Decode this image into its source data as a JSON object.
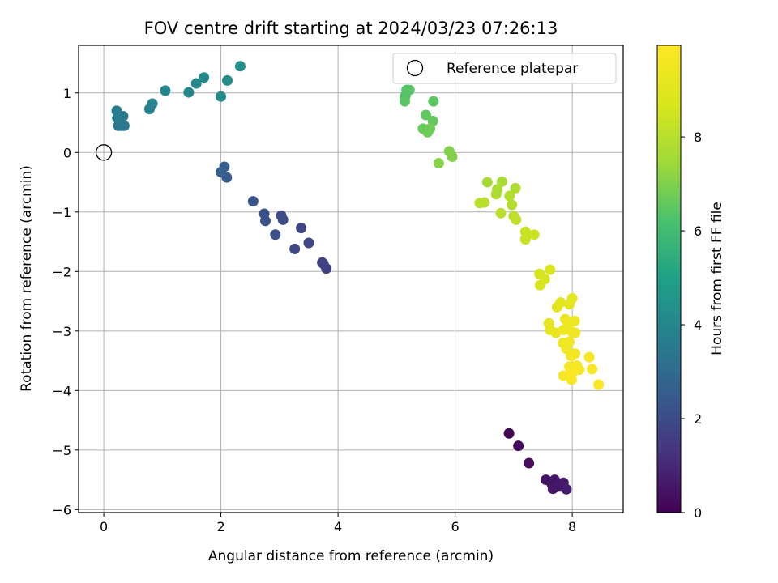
{
  "chart_data": {
    "type": "scatter",
    "title": "FOV centre drift starting at 2024/03/23 07:26:13",
    "xlabel": "Angular distance from reference (arcmin)",
    "ylabel": "Rotation from reference (arcmin)",
    "xlim": [
      -0.43,
      8.87
    ],
    "ylim": [
      -6.05,
      1.8
    ],
    "xticks": [
      0,
      2,
      4,
      6,
      8
    ],
    "yticks": [
      1,
      0,
      -1,
      -2,
      -3,
      -4,
      -5,
      -6
    ],
    "xtick_labels": [
      "0",
      "2",
      "4",
      "6",
      "8"
    ],
    "ytick_labels": [
      "1",
      "0",
      "−1",
      "−2",
      "−3",
      "−4",
      "−5",
      "−6"
    ],
    "grid": true,
    "legend": {
      "placement": "top-right",
      "entries": [
        "Reference platepar"
      ]
    },
    "reference_point": {
      "x": 0,
      "y": 0
    },
    "colorbar": {
      "label": "Hours from first FF file",
      "range": [
        0,
        9.95
      ],
      "ticks": [
        0,
        2,
        4,
        6,
        8
      ],
      "tick_labels": [
        "0",
        "2",
        "4",
        "6",
        "8"
      ],
      "colormap": "viridis"
    },
    "points": [
      {
        "x": 6.92,
        "y": -4.72,
        "h": 0.1
      },
      {
        "x": 7.08,
        "y": -4.93,
        "h": 0.2
      },
      {
        "x": 7.26,
        "y": -5.22,
        "h": 0.3
      },
      {
        "x": 7.55,
        "y": -5.5,
        "h": 0.4
      },
      {
        "x": 7.65,
        "y": -5.57,
        "h": 0.45
      },
      {
        "x": 7.7,
        "y": -5.5,
        "h": 0.5
      },
      {
        "x": 7.67,
        "y": -5.65,
        "h": 0.55
      },
      {
        "x": 7.78,
        "y": -5.6,
        "h": 0.6
      },
      {
        "x": 7.85,
        "y": -5.55,
        "h": 0.65
      },
      {
        "x": 7.9,
        "y": -5.66,
        "h": 0.7
      },
      {
        "x": 3.8,
        "y": -1.95,
        "h": 1.6
      },
      {
        "x": 3.73,
        "y": -1.85,
        "h": 1.65
      },
      {
        "x": 3.75,
        "y": -1.87,
        "h": 1.7
      },
      {
        "x": 3.5,
        "y": -1.52,
        "h": 1.8
      },
      {
        "x": 3.37,
        "y": -1.27,
        "h": 1.85
      },
      {
        "x": 3.26,
        "y": -1.62,
        "h": 1.9
      },
      {
        "x": 3.06,
        "y": -1.13,
        "h": 2.0
      },
      {
        "x": 3.03,
        "y": -1.06,
        "h": 2.05
      },
      {
        "x": 2.93,
        "y": -1.38,
        "h": 2.1
      },
      {
        "x": 2.76,
        "y": -1.15,
        "h": 2.15
      },
      {
        "x": 2.74,
        "y": -1.03,
        "h": 2.2
      },
      {
        "x": 2.55,
        "y": -0.82,
        "h": 2.3
      },
      {
        "x": 2.1,
        "y": -0.42,
        "h": 2.5
      },
      {
        "x": 2.06,
        "y": -0.24,
        "h": 2.55
      },
      {
        "x": 2.0,
        "y": -0.33,
        "h": 2.6
      },
      {
        "x": 0.3,
        "y": 0.45,
        "h": 3.4
      },
      {
        "x": 0.25,
        "y": 0.45,
        "h": 3.45
      },
      {
        "x": 0.35,
        "y": 0.45,
        "h": 3.5
      },
      {
        "x": 0.33,
        "y": 0.61,
        "h": 3.55
      },
      {
        "x": 0.22,
        "y": 0.7,
        "h": 3.6
      },
      {
        "x": 0.23,
        "y": 0.58,
        "h": 3.65
      },
      {
        "x": 0.78,
        "y": 0.73,
        "h": 3.75
      },
      {
        "x": 0.83,
        "y": 0.82,
        "h": 3.8
      },
      {
        "x": 1.05,
        "y": 1.04,
        "h": 3.9
      },
      {
        "x": 1.45,
        "y": 1.01,
        "h": 4.0
      },
      {
        "x": 1.58,
        "y": 1.16,
        "h": 4.05
      },
      {
        "x": 1.71,
        "y": 1.26,
        "h": 4.1
      },
      {
        "x": 2.0,
        "y": 0.94,
        "h": 4.2
      },
      {
        "x": 2.11,
        "y": 1.21,
        "h": 4.25
      },
      {
        "x": 2.33,
        "y": 1.45,
        "h": 4.3
      },
      {
        "x": 5.15,
        "y": 0.95,
        "h": 6.3
      },
      {
        "x": 5.17,
        "y": 1.05,
        "h": 6.35
      },
      {
        "x": 5.22,
        "y": 1.05,
        "h": 6.4
      },
      {
        "x": 5.14,
        "y": 0.86,
        "h": 6.45
      },
      {
        "x": 5.63,
        "y": 0.86,
        "h": 6.5
      },
      {
        "x": 5.5,
        "y": 0.63,
        "h": 6.55
      },
      {
        "x": 5.62,
        "y": 0.53,
        "h": 6.6
      },
      {
        "x": 5.45,
        "y": 0.4,
        "h": 6.65
      },
      {
        "x": 5.53,
        "y": 0.34,
        "h": 6.7
      },
      {
        "x": 5.57,
        "y": 0.4,
        "h": 6.75
      },
      {
        "x": 5.9,
        "y": 0.02,
        "h": 7.0
      },
      {
        "x": 5.95,
        "y": -0.07,
        "h": 7.05
      },
      {
        "x": 5.72,
        "y": -0.18,
        "h": 7.1
      },
      {
        "x": 6.55,
        "y": -0.5,
        "h": 7.6
      },
      {
        "x": 6.8,
        "y": -0.49,
        "h": 7.65
      },
      {
        "x": 6.72,
        "y": -0.62,
        "h": 7.7
      },
      {
        "x": 6.7,
        "y": -0.7,
        "h": 7.75
      },
      {
        "x": 7.03,
        "y": -0.6,
        "h": 7.8
      },
      {
        "x": 6.93,
        "y": -0.73,
        "h": 7.85
      },
      {
        "x": 6.97,
        "y": -0.88,
        "h": 7.9
      },
      {
        "x": 6.42,
        "y": -0.85,
        "h": 7.95
      },
      {
        "x": 6.5,
        "y": -0.84,
        "h": 8.0
      },
      {
        "x": 6.78,
        "y": -1.02,
        "h": 8.05
      },
      {
        "x": 7.0,
        "y": -1.07,
        "h": 8.1
      },
      {
        "x": 7.04,
        "y": -1.13,
        "h": 8.15
      },
      {
        "x": 7.2,
        "y": -1.33,
        "h": 8.3
      },
      {
        "x": 7.2,
        "y": -1.46,
        "h": 8.35
      },
      {
        "x": 7.35,
        "y": -1.38,
        "h": 8.4
      },
      {
        "x": 7.44,
        "y": -2.04,
        "h": 8.6
      },
      {
        "x": 7.53,
        "y": -2.13,
        "h": 8.65
      },
      {
        "x": 7.45,
        "y": -2.23,
        "h": 8.7
      },
      {
        "x": 7.62,
        "y": -1.97,
        "h": 8.75
      },
      {
        "x": 7.8,
        "y": -2.52,
        "h": 9.0
      },
      {
        "x": 7.74,
        "y": -2.6,
        "h": 9.05
      },
      {
        "x": 8.0,
        "y": -2.45,
        "h": 9.1
      },
      {
        "x": 7.95,
        "y": -2.55,
        "h": 9.12
      },
      {
        "x": 7.6,
        "y": -2.87,
        "h": 9.15
      },
      {
        "x": 7.62,
        "y": -2.98,
        "h": 9.2
      },
      {
        "x": 7.72,
        "y": -3.03,
        "h": 9.25
      },
      {
        "x": 7.88,
        "y": -2.8,
        "h": 9.3
      },
      {
        "x": 7.93,
        "y": -2.88,
        "h": 9.35
      },
      {
        "x": 8.04,
        "y": -2.83,
        "h": 9.4
      },
      {
        "x": 7.85,
        "y": -2.98,
        "h": 9.42
      },
      {
        "x": 7.99,
        "y": -3.01,
        "h": 9.45
      },
      {
        "x": 8.05,
        "y": -3.03,
        "h": 9.48
      },
      {
        "x": 7.84,
        "y": -3.2,
        "h": 9.5
      },
      {
        "x": 7.95,
        "y": -3.18,
        "h": 9.52
      },
      {
        "x": 7.9,
        "y": -3.3,
        "h": 9.55
      },
      {
        "x": 7.98,
        "y": -3.42,
        "h": 9.58
      },
      {
        "x": 8.05,
        "y": -3.38,
        "h": 9.6
      },
      {
        "x": 7.95,
        "y": -3.6,
        "h": 9.65
      },
      {
        "x": 8.08,
        "y": -3.58,
        "h": 9.68
      },
      {
        "x": 8.12,
        "y": -3.65,
        "h": 9.7
      },
      {
        "x": 8.29,
        "y": -3.44,
        "h": 9.72
      },
      {
        "x": 8.34,
        "y": -3.64,
        "h": 9.75
      },
      {
        "x": 7.85,
        "y": -3.75,
        "h": 9.78
      },
      {
        "x": 7.99,
        "y": -3.82,
        "h": 9.8
      },
      {
        "x": 8.45,
        "y": -3.9,
        "h": 9.85
      },
      {
        "x": 8.0,
        "y": -3.7,
        "h": 9.9
      }
    ]
  }
}
